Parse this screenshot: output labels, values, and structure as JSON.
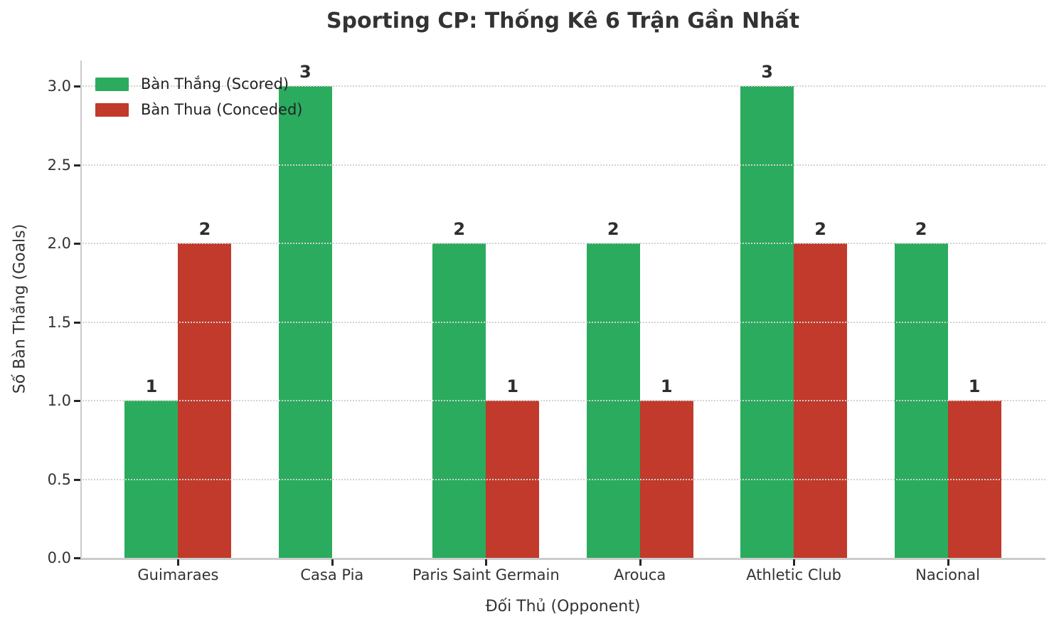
{
  "chart_data": {
    "type": "bar",
    "title": "Sporting CP: Thống Kê 6 Trận Gần Nhất",
    "xlabel": "Đối Thủ (Opponent)",
    "ylabel": "Số Bàn Thắng (Goals)",
    "categories": [
      "Guimaraes",
      "Casa Pia",
      "Paris Saint Germain",
      "Arouca",
      "Athletic Club",
      "Nacional"
    ],
    "series": [
      {
        "name": "Bàn Thắng (Scored)",
        "color": "#2bab5e",
        "values": [
          1,
          3,
          2,
          2,
          3,
          2
        ]
      },
      {
        "name": "Bàn Thua (Conceded)",
        "color": "#c13a2b",
        "values": [
          2,
          0,
          1,
          1,
          2,
          1
        ]
      }
    ],
    "yticks": [
      0.0,
      0.5,
      1.0,
      1.5,
      2.0,
      2.5,
      3.0
    ],
    "ylim": [
      0,
      3.163
    ],
    "grid": "dotted-horizontal",
    "legend_position": "upper-left",
    "bar_labels": true,
    "zero_value_bars_hidden": true
  }
}
